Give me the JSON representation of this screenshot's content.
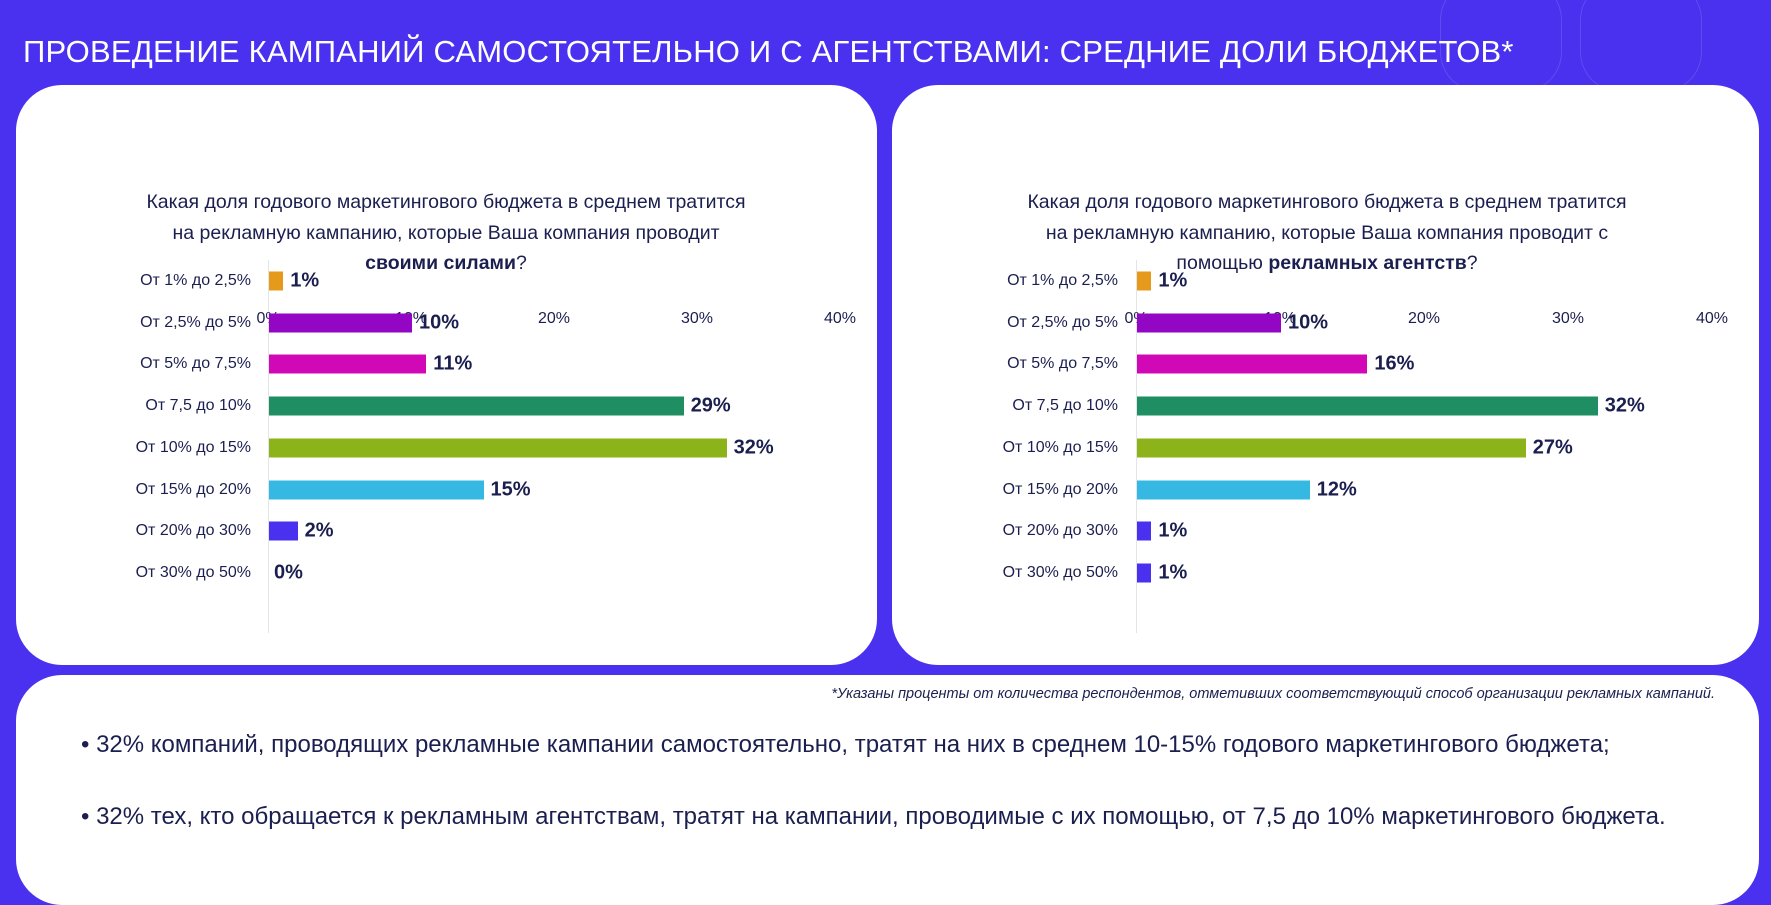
{
  "title": "ПРОВЕДЕНИЕ КАМПАНИЙ САМОСТОЯТЕЛЬНО И С АГЕНТСТВАМИ: СРЕДНИЕ ДОЛИ БЮДЖЕТОВ*",
  "left": {
    "question_pre": "Какая доля годового маркетингового бюджета в среднем тратится на рекламную кампанию, которые Ваша компания проводит ",
    "question_bold": "своими силами",
    "question_post": "?"
  },
  "right": {
    "question_pre": "Какая доля годового маркетингового бюджета в среднем тратится на рекламную кампанию, которые Ваша компания проводит с помощью ",
    "question_bold": "рекламных агентств",
    "question_post": "?"
  },
  "colors": [
    "#e59a1c",
    "#9306c4",
    "#d108b6",
    "#1f8e62",
    "#8db31a",
    "#35b8e2",
    "#4a31ef",
    "#4a31ef"
  ],
  "chart_data": [
    {
      "type": "bar",
      "title": "своими силами",
      "categories": [
        "От 1% до 2,5%",
        "От 2,5% до 5%",
        "От 5% до 7,5%",
        "От 7,5 до 10%",
        "От 10% до 15%",
        "От 15% до 20%",
        "От 20% до 30%",
        "От 30% до 50%"
      ],
      "values": [
        1,
        10,
        11,
        29,
        32,
        15,
        2,
        0
      ],
      "value_labels": [
        "1%",
        "10%",
        "11%",
        "29%",
        "32%",
        "15%",
        "2%",
        "0%"
      ],
      "xticks": [
        "0%",
        "10%",
        "20%",
        "30%",
        "40%"
      ],
      "xlim": [
        0,
        40
      ]
    },
    {
      "type": "bar",
      "title": "рекламных агентств",
      "categories": [
        "От 1% до 2,5%",
        "От 2,5% до 5%",
        "От 5% до 7,5%",
        "От 7,5 до 10%",
        "От 10% до 15%",
        "От 15% до 20%",
        "От 20% до 30%",
        "От 30% до 50%"
      ],
      "values": [
        1,
        10,
        16,
        32,
        27,
        12,
        1,
        1
      ],
      "value_labels": [
        "1%",
        "10%",
        "16%",
        "32%",
        "27%",
        "12%",
        "1%",
        "1%"
      ],
      "xticks": [
        "0%",
        "10%",
        "20%",
        "30%",
        "40%"
      ],
      "xlim": [
        0,
        40
      ]
    }
  ],
  "footnote": "*Указаны проценты от количества респондентов, отметивших соответствующий способ организации рекламных кампаний.",
  "bullets": [
    "• 32% компаний, проводящих рекламные кампании самостоятельно, тратят на них в среднем 10-15% годового маркетингового бюджета;",
    "• 32% тех, кто обращается к рекламным агентствам, тратят на кампании, проводимые с их помощью, от 7,5 до 10% маркетингового бюджета."
  ]
}
